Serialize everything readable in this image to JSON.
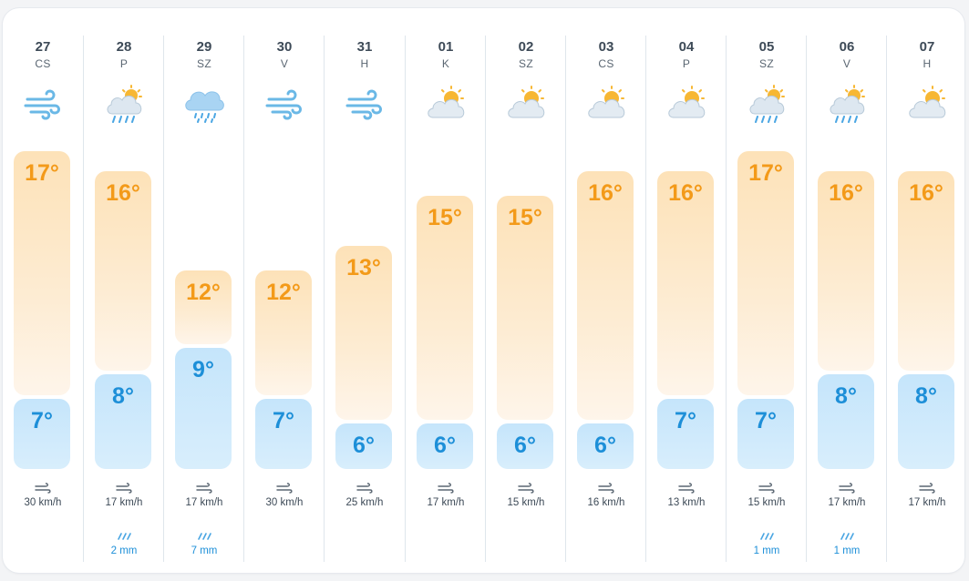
{
  "colors": {
    "high_text": "#f39a19",
    "low_text": "#1d8fd8",
    "separator": "#dfe6ec"
  },
  "days": [
    {
      "date": "27",
      "dow": "CS",
      "icon": "wind-icon",
      "high": "17°",
      "low": "7°",
      "wind": "30 km/h",
      "rain": ""
    },
    {
      "date": "28",
      "dow": "P",
      "icon": "sun-cloud-rain-icon",
      "high": "16°",
      "low": "8°",
      "wind": "17 km/h",
      "rain": "2 mm"
    },
    {
      "date": "29",
      "dow": "SZ",
      "icon": "cloud-rain-icon",
      "high": "12°",
      "low": "9°",
      "wind": "17 km/h",
      "rain": "7 mm"
    },
    {
      "date": "30",
      "dow": "V",
      "icon": "wind-icon",
      "high": "12°",
      "low": "7°",
      "wind": "30 km/h",
      "rain": ""
    },
    {
      "date": "31",
      "dow": "H",
      "icon": "wind-icon",
      "high": "13°",
      "low": "6°",
      "wind": "25 km/h",
      "rain": ""
    },
    {
      "date": "01",
      "dow": "K",
      "icon": "partly-cloudy-icon",
      "high": "15°",
      "low": "6°",
      "wind": "17 km/h",
      "rain": ""
    },
    {
      "date": "02",
      "dow": "SZ",
      "icon": "partly-cloudy-icon",
      "high": "15°",
      "low": "6°",
      "wind": "15 km/h",
      "rain": ""
    },
    {
      "date": "03",
      "dow": "CS",
      "icon": "partly-cloudy-icon",
      "high": "16°",
      "low": "6°",
      "wind": "16 km/h",
      "rain": ""
    },
    {
      "date": "04",
      "dow": "P",
      "icon": "partly-cloudy-icon",
      "high": "16°",
      "low": "7°",
      "wind": "13 km/h",
      "rain": ""
    },
    {
      "date": "05",
      "dow": "SZ",
      "icon": "sun-cloud-rain-icon",
      "high": "17°",
      "low": "7°",
      "wind": "15 km/h",
      "rain": "1 mm"
    },
    {
      "date": "06",
      "dow": "V",
      "icon": "sun-cloud-rain-icon",
      "high": "16°",
      "low": "8°",
      "wind": "17 km/h",
      "rain": "1 mm"
    },
    {
      "date": "07",
      "dow": "H",
      "icon": "partly-cloudy-icon",
      "high": "16°",
      "low": "8°",
      "wind": "17 km/h",
      "rain": ""
    }
  ]
}
